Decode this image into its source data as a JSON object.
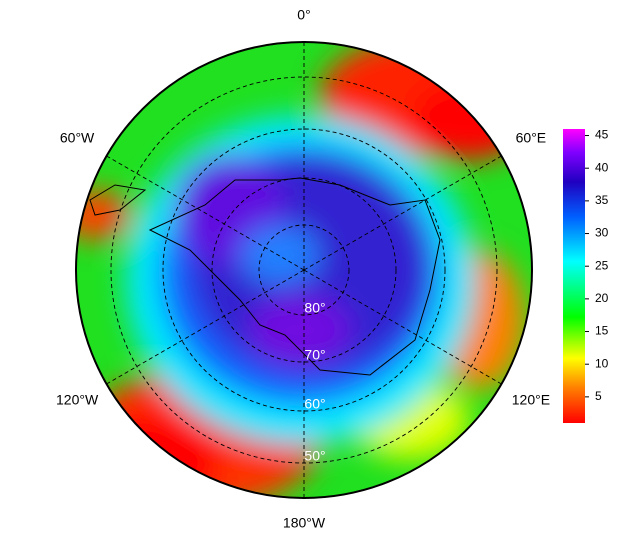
{
  "map": {
    "meridian_labels": [
      "0°",
      "60°E",
      "120°E",
      "180°W",
      "120°W",
      "60°W"
    ],
    "latitude_labels": [
      "80°",
      "70°",
      "60°",
      "50°"
    ]
  },
  "colorbar": {
    "lim": [
      1,
      46
    ],
    "ticks": [
      5,
      10,
      15,
      20,
      25,
      30,
      35,
      40,
      45
    ]
  }
}
